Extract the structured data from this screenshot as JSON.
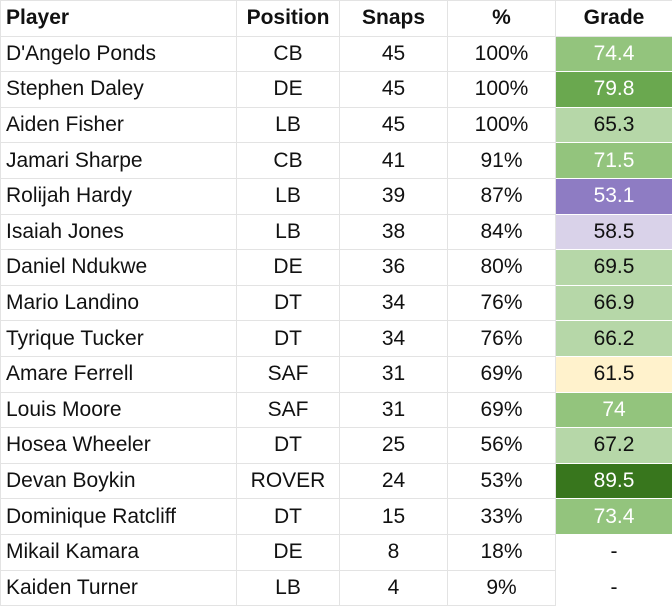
{
  "table": {
    "headers": {
      "player": "Player",
      "position": "Position",
      "snaps": "Snaps",
      "percent": "%",
      "grade": "Grade"
    },
    "rows": [
      {
        "player": "D'Angelo Ponds",
        "position": "CB",
        "snaps": "45",
        "percent": "100%",
        "grade": "74.4",
        "grade_bg": "#93c47d",
        "grade_fg": "#ffffff"
      },
      {
        "player": "Stephen Daley",
        "position": "DE",
        "snaps": "45",
        "percent": "100%",
        "grade": "79.8",
        "grade_bg": "#6aa84f",
        "grade_fg": "#ffffff"
      },
      {
        "player": "Aiden Fisher",
        "position": "LB",
        "snaps": "45",
        "percent": "100%",
        "grade": "65.3",
        "grade_bg": "#b6d7a8",
        "grade_fg": "#111111"
      },
      {
        "player": "Jamari Sharpe",
        "position": "CB",
        "snaps": "41",
        "percent": "91%",
        "grade": "71.5",
        "grade_bg": "#93c47d",
        "grade_fg": "#ffffff"
      },
      {
        "player": "Rolijah Hardy",
        "position": "LB",
        "snaps": "39",
        "percent": "87%",
        "grade": "53.1",
        "grade_bg": "#8e7cc3",
        "grade_fg": "#ffffff"
      },
      {
        "player": "Isaiah Jones",
        "position": "LB",
        "snaps": "38",
        "percent": "84%",
        "grade": "58.5",
        "grade_bg": "#d9d2e9",
        "grade_fg": "#111111"
      },
      {
        "player": "Daniel Ndukwe",
        "position": "DE",
        "snaps": "36",
        "percent": "80%",
        "grade": "69.5",
        "grade_bg": "#b6d7a8",
        "grade_fg": "#111111"
      },
      {
        "player": "Mario Landino",
        "position": "DT",
        "snaps": "34",
        "percent": "76%",
        "grade": "66.9",
        "grade_bg": "#b6d7a8",
        "grade_fg": "#111111"
      },
      {
        "player": "Tyrique Tucker",
        "position": "DT",
        "snaps": "34",
        "percent": "76%",
        "grade": "66.2",
        "grade_bg": "#b6d7a8",
        "grade_fg": "#111111"
      },
      {
        "player": "Amare Ferrell",
        "position": "SAF",
        "snaps": "31",
        "percent": "69%",
        "grade": "61.5",
        "grade_bg": "#fff2cc",
        "grade_fg": "#111111"
      },
      {
        "player": "Louis Moore",
        "position": "SAF",
        "snaps": "31",
        "percent": "69%",
        "grade": "74",
        "grade_bg": "#93c47d",
        "grade_fg": "#ffffff"
      },
      {
        "player": "Hosea Wheeler",
        "position": "DT",
        "snaps": "25",
        "percent": "56%",
        "grade": "67.2",
        "grade_bg": "#b6d7a8",
        "grade_fg": "#111111"
      },
      {
        "player": "Devan Boykin",
        "position": "ROVER",
        "snaps": "24",
        "percent": "53%",
        "grade": "89.5",
        "grade_bg": "#38761d",
        "grade_fg": "#ffffff"
      },
      {
        "player": "Dominique Ratcliff",
        "position": "DT",
        "snaps": "15",
        "percent": "33%",
        "grade": "73.4",
        "grade_bg": "#93c47d",
        "grade_fg": "#ffffff"
      },
      {
        "player": "Mikail Kamara",
        "position": "DE",
        "snaps": "8",
        "percent": "18%",
        "grade": "-",
        "grade_bg": "#ffffff",
        "grade_fg": "#111111"
      },
      {
        "player": "Kaiden Turner",
        "position": "LB",
        "snaps": "4",
        "percent": "9%",
        "grade": "-",
        "grade_bg": "#ffffff",
        "grade_fg": "#111111"
      }
    ]
  }
}
